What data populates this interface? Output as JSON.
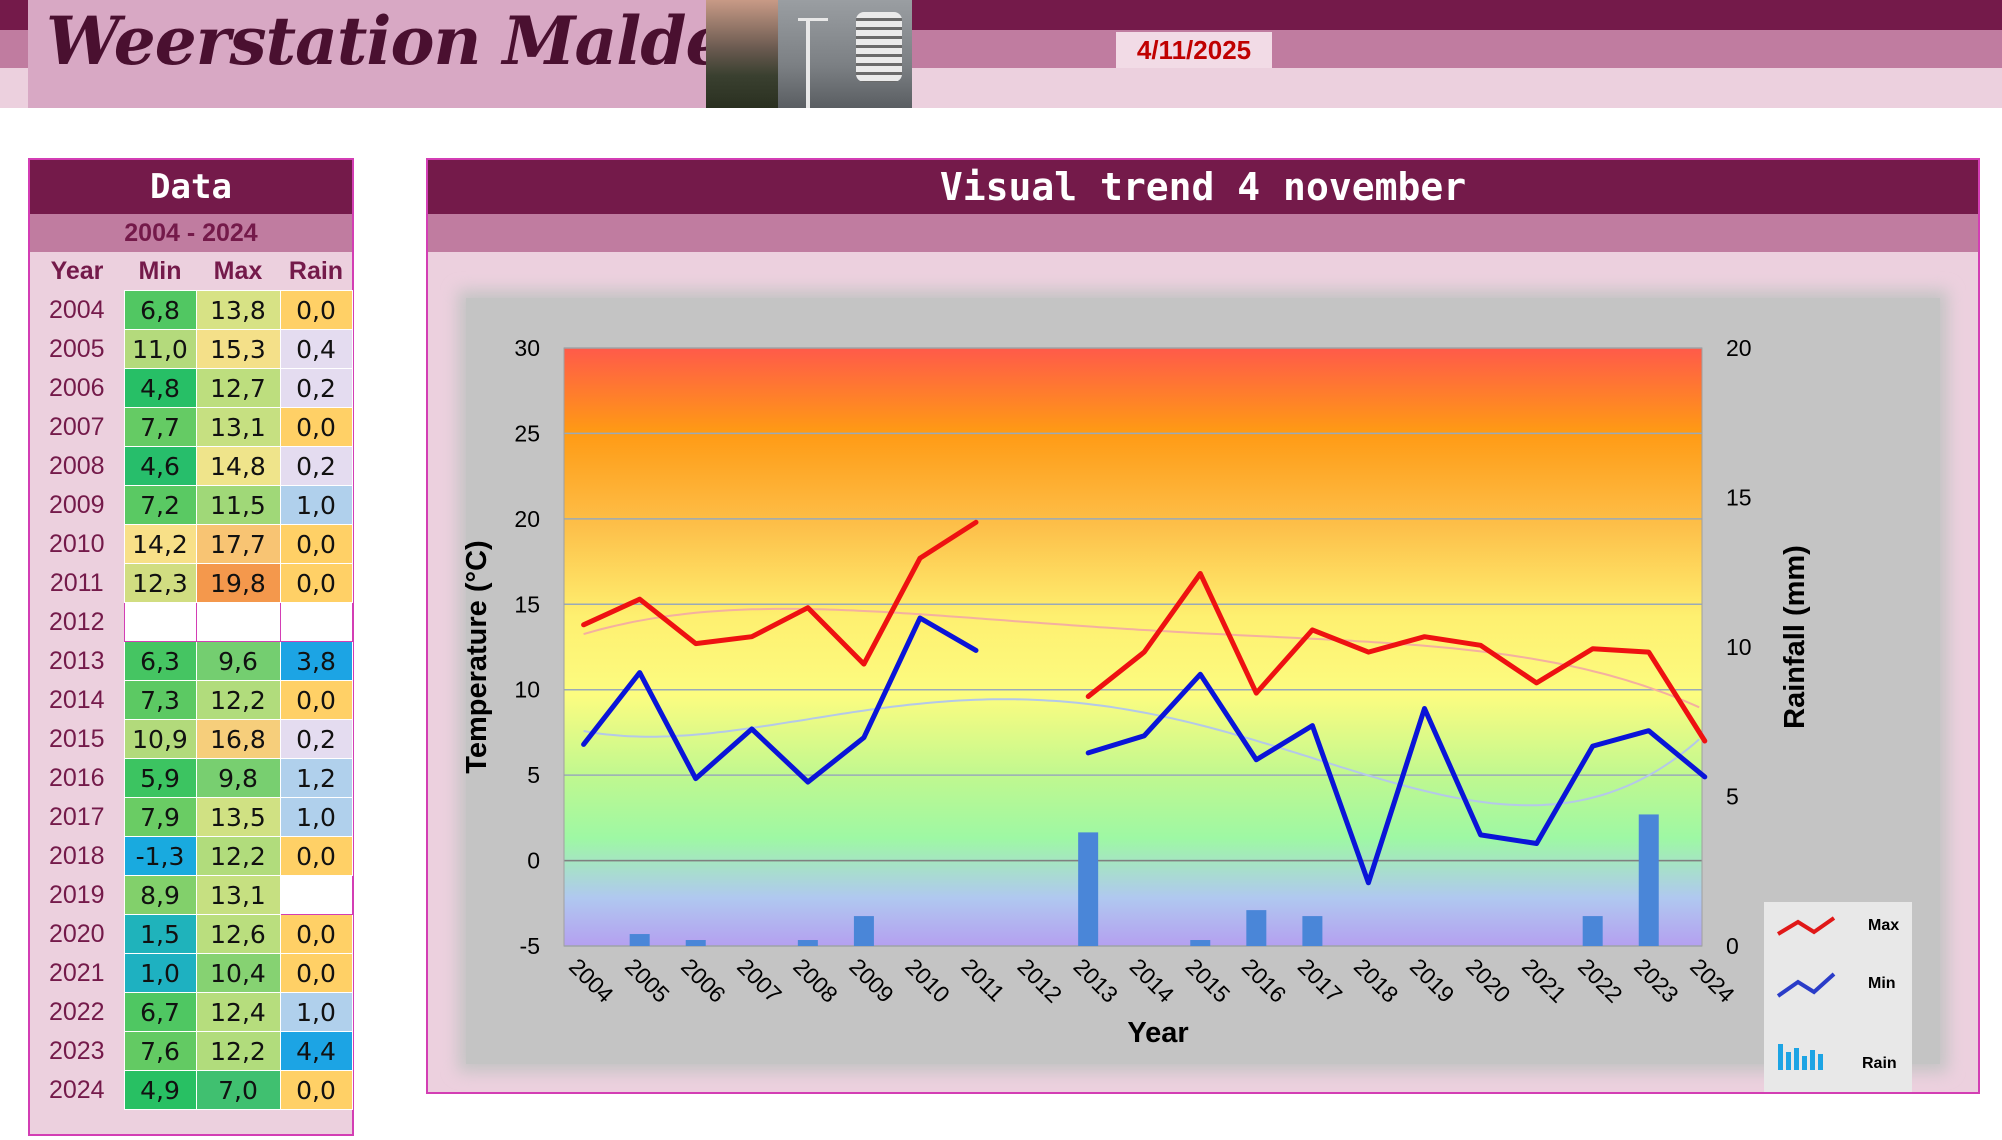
{
  "header": {
    "title": "Weerstation Malderen",
    "date": "4/11/2025"
  },
  "data_table": {
    "title": "Data",
    "range": "2004 - 2024",
    "columns": [
      "Year",
      "Min",
      "Max",
      "Rain"
    ],
    "rows": [
      {
        "year": "2004",
        "min": "6,8",
        "max": "13,8",
        "rain": "0,0"
      },
      {
        "year": "2005",
        "min": "11,0",
        "max": "15,3",
        "rain": "0,4"
      },
      {
        "year": "2006",
        "min": "4,8",
        "max": "12,7",
        "rain": "0,2"
      },
      {
        "year": "2007",
        "min": "7,7",
        "max": "13,1",
        "rain": "0,0"
      },
      {
        "year": "2008",
        "min": "4,6",
        "max": "14,8",
        "rain": "0,2"
      },
      {
        "year": "2009",
        "min": "7,2",
        "max": "11,5",
        "rain": "1,0"
      },
      {
        "year": "2010",
        "min": "14,2",
        "max": "17,7",
        "rain": "0,0"
      },
      {
        "year": "2011",
        "min": "12,3",
        "max": "19,8",
        "rain": "0,0"
      },
      {
        "year": "2012",
        "min": "",
        "max": "",
        "rain": ""
      },
      {
        "year": "2013",
        "min": "6,3",
        "max": "9,6",
        "rain": "3,8"
      },
      {
        "year": "2014",
        "min": "7,3",
        "max": "12,2",
        "rain": "0,0"
      },
      {
        "year": "2015",
        "min": "10,9",
        "max": "16,8",
        "rain": "0,2"
      },
      {
        "year": "2016",
        "min": "5,9",
        "max": "9,8",
        "rain": "1,2"
      },
      {
        "year": "2017",
        "min": "7,9",
        "max": "13,5",
        "rain": "1,0"
      },
      {
        "year": "2018",
        "min": "-1,3",
        "max": "12,2",
        "rain": "0,0"
      },
      {
        "year": "2019",
        "min": "8,9",
        "max": "13,1",
        "rain": ""
      },
      {
        "year": "2020",
        "min": "1,5",
        "max": "12,6",
        "rain": "0,0"
      },
      {
        "year": "2021",
        "min": "1,0",
        "max": "10,4",
        "rain": "0,0"
      },
      {
        "year": "2022",
        "min": "6,7",
        "max": "12,4",
        "rain": "1,0"
      },
      {
        "year": "2023",
        "min": "7,6",
        "max": "12,2",
        "rain": "4,4"
      },
      {
        "year": "2024",
        "min": "4,9",
        "max": "7,0",
        "rain": "0,0"
      }
    ]
  },
  "chart_data": {
    "type": "line",
    "title": "Visual trend 4 november",
    "xlabel": "Year",
    "ylabel": "Temperature (°C)",
    "y2label": "Rainfall (mm)",
    "ylim": [
      -5,
      30
    ],
    "y2lim": [
      0,
      20
    ],
    "yticks": [
      -5,
      0,
      5,
      10,
      15,
      20,
      25,
      30
    ],
    "y2ticks": [
      0,
      5,
      10,
      15,
      20
    ],
    "grid": true,
    "legend": "right",
    "categories": [
      "2004",
      "2005",
      "2006",
      "2007",
      "2008",
      "2009",
      "2010",
      "2011",
      "2012",
      "2013",
      "2014",
      "2015",
      "2016",
      "2017",
      "2018",
      "2019",
      "2020",
      "2021",
      "2022",
      "2023",
      "2024"
    ],
    "series": [
      {
        "name": "Max",
        "kind": "line",
        "axis": "left",
        "color": "#ee1111",
        "values": [
          13.8,
          15.3,
          12.7,
          13.1,
          14.8,
          11.5,
          17.7,
          19.8,
          null,
          9.6,
          12.2,
          16.8,
          9.8,
          13.5,
          12.2,
          13.1,
          12.6,
          10.4,
          12.4,
          12.2,
          7.0
        ]
      },
      {
        "name": "Min",
        "kind": "line",
        "axis": "left",
        "color": "#0a14d8",
        "values": [
          6.8,
          11.0,
          4.8,
          7.7,
          4.6,
          7.2,
          14.2,
          12.3,
          null,
          6.3,
          7.3,
          10.9,
          5.9,
          7.9,
          -1.3,
          8.9,
          1.5,
          1.0,
          6.7,
          7.6,
          4.9
        ]
      },
      {
        "name": "Rain",
        "kind": "bar",
        "axis": "right",
        "color": "#4a86d8",
        "values": [
          0.0,
          0.4,
          0.2,
          0.0,
          0.2,
          1.0,
          0.0,
          0.0,
          null,
          3.8,
          0.0,
          0.2,
          1.2,
          1.0,
          0.0,
          null,
          0.0,
          0.0,
          1.0,
          4.4,
          0.0
        ]
      }
    ]
  },
  "colors": {
    "header_dark": "#741a4a",
    "header_mid": "#c07ca0",
    "header_light": "#ecd0de",
    "panel_border": "#d33eb4",
    "date_text": "#c00000"
  }
}
